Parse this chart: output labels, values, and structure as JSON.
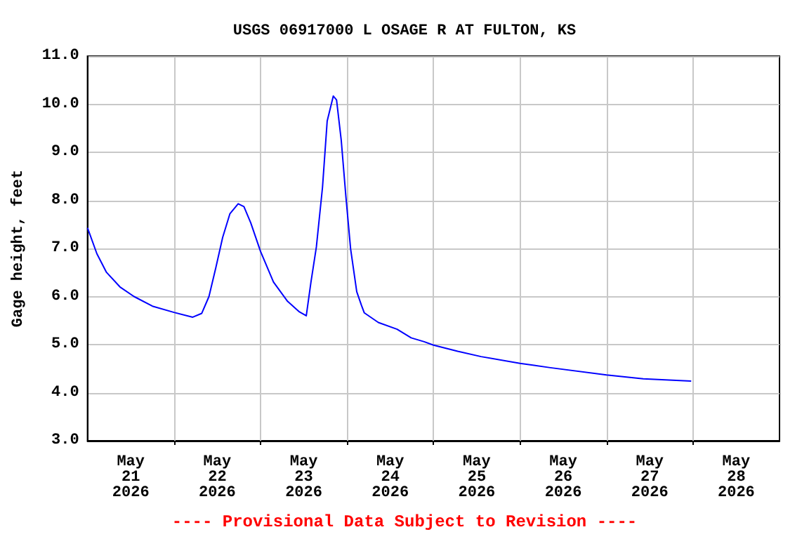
{
  "chart_data": {
    "type": "line",
    "title": "USGS 06917000 L OSAGE R AT FULTON, KS",
    "ylabel": "Gage height, feet",
    "annotations": [
      "---- Provisional Data Subject to Revision ----"
    ],
    "x": [
      "2026-05-21T00:00",
      "2026-05-21T02:36",
      "2026-05-21T05:12",
      "2026-05-21T09:00",
      "2026-05-21T12:54",
      "2026-05-21T18:00",
      "2026-05-22T00:00",
      "2026-05-22T05:12",
      "2026-05-22T07:42",
      "2026-05-22T09:42",
      "2026-05-22T11:36",
      "2026-05-22T13:30",
      "2026-05-22T15:30",
      "2026-05-22T17:48",
      "2026-05-22T19:24",
      "2026-05-22T21:18",
      "2026-05-23T00:00",
      "2026-05-23T03:36",
      "2026-05-23T07:30",
      "2026-05-23T10:48",
      "2026-05-23T12:42",
      "2026-05-23T14:00",
      "2026-05-23T15:30",
      "2026-05-23T17:12",
      "2026-05-23T18:30",
      "2026-05-23T20:12",
      "2026-05-23T21:06",
      "2026-05-23T22:24",
      "2026-05-23T23:42",
      "2026-05-24T01:00",
      "2026-05-24T02:42",
      "2026-05-24T04:00",
      "2026-05-24T04:48",
      "2026-05-24T08:42",
      "2026-05-24T13:54",
      "2026-05-24T17:48",
      "2026-05-24T21:24",
      "2026-05-25T00:00",
      "2026-05-25T06:42",
      "2026-05-25T13:12",
      "2026-05-26T00:00",
      "2026-05-26T08:24",
      "2026-05-27T00:00",
      "2026-05-27T10:12",
      "2026-05-27T23:30"
    ],
    "series": [
      {
        "color": "#0000ff",
        "values": [
          7.43,
          6.89,
          6.51,
          6.2,
          6.0,
          5.8,
          5.67,
          5.57,
          5.65,
          6.0,
          6.6,
          7.23,
          7.72,
          7.93,
          7.87,
          7.53,
          6.94,
          6.3,
          5.9,
          5.68,
          5.6,
          6.3,
          7.03,
          8.27,
          9.65,
          10.17,
          10.09,
          9.25,
          8.07,
          6.99,
          6.1,
          5.82,
          5.66,
          5.46,
          5.32,
          5.14,
          5.06,
          4.99,
          4.86,
          4.75,
          4.61,
          4.52,
          4.37,
          4.29,
          4.24
        ]
      }
    ],
    "xlim": [
      "2026-05-21T00:00",
      "2026-05-29T00:00"
    ],
    "xticks": [
      {
        "value": "2026-05-21T12:00",
        "label": "May\n21\n2026"
      },
      {
        "value": "2026-05-22T00:00",
        "label": null
      },
      {
        "value": "2026-05-22T12:00",
        "label": "May\n22\n2026"
      },
      {
        "value": "2026-05-23T00:00",
        "label": null
      },
      {
        "value": "2026-05-23T12:00",
        "label": "May\n23\n2026"
      },
      {
        "value": "2026-05-24T00:00",
        "label": null
      },
      {
        "value": "2026-05-24T12:00",
        "label": "May\n24\n2026"
      },
      {
        "value": "2026-05-25T00:00",
        "label": null
      },
      {
        "value": "2026-05-25T12:00",
        "label": "May\n25\n2026"
      },
      {
        "value": "2026-05-26T00:00",
        "label": null
      },
      {
        "value": "2026-05-26T12:00",
        "label": "May\n26\n2026"
      },
      {
        "value": "2026-05-27T00:00",
        "label": null
      },
      {
        "value": "2026-05-27T12:00",
        "label": "May\n27\n2026"
      },
      {
        "value": "2026-05-28T00:00",
        "label": null
      },
      {
        "value": "2026-05-28T12:00",
        "label": "May\n28\n2026"
      }
    ],
    "ylim": [
      3,
      11
    ],
    "yticks": [
      {
        "value": 3,
        "label": "3.0"
      },
      {
        "value": 4,
        "label": "4.0"
      },
      {
        "value": 5,
        "label": "5.0"
      },
      {
        "value": 6,
        "label": "6.0"
      },
      {
        "value": 7,
        "label": "7.0"
      },
      {
        "value": 8,
        "label": "8.0"
      },
      {
        "value": 9,
        "label": "9.0"
      },
      {
        "value": 10,
        "label": "10.0"
      },
      {
        "value": 11,
        "label": "11.0"
      }
    ],
    "grid": true,
    "marker": "none",
    "line_style": "solid"
  }
}
